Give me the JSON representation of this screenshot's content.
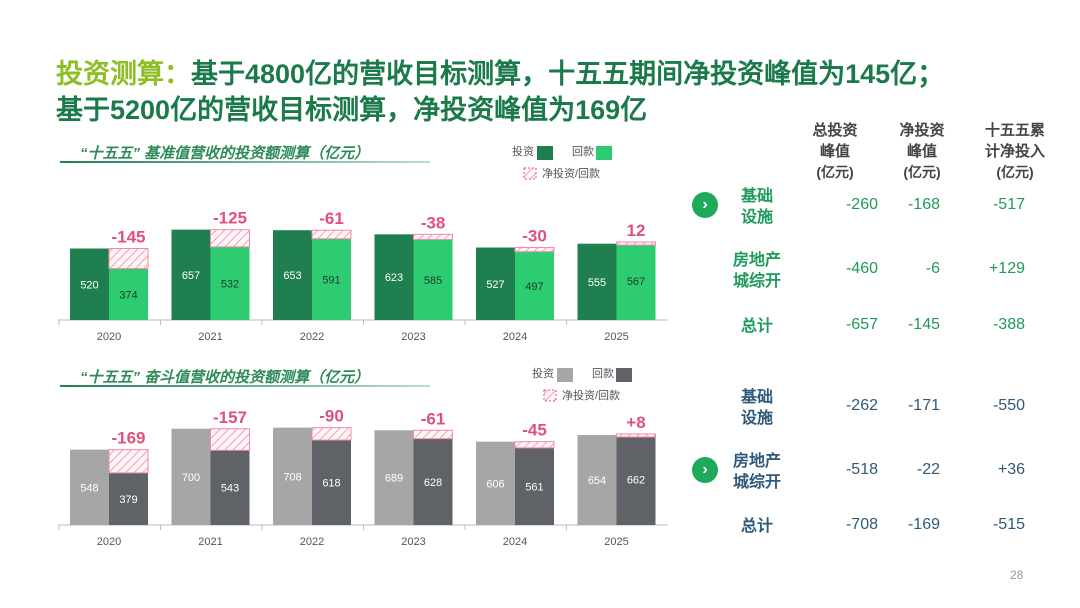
{
  "title": {
    "line1_highlight": "投资测算：",
    "line1_rest": "基于4800亿的营收目标测算，十五五期间净投资峰值为145亿；",
    "line2": "基于5200亿的营收目标测算，净投资峰值为169亿"
  },
  "chart_data": [
    {
      "type": "bar",
      "title": "“十五五” 基准值营收的投资额测算（亿元）",
      "categories": [
        "2020",
        "2021",
        "2022",
        "2023",
        "2024",
        "2025"
      ],
      "series": [
        {
          "name": "投资",
          "values": [
            520,
            657,
            653,
            623,
            527,
            555
          ]
        },
        {
          "name": "回款",
          "values": [
            374,
            532,
            591,
            585,
            497,
            567
          ]
        }
      ],
      "net_label": "净投资/回款",
      "net_values": [
        "-145",
        "-125",
        "-61",
        "-38",
        "-30",
        "12"
      ],
      "colors": {
        "invest": "#1f7f4f",
        "return": "#2ecc71",
        "net": "#e0507a"
      },
      "ylim": [
        0,
        800
      ]
    },
    {
      "type": "bar",
      "title": "“十五五” 奋斗值营收的投资额测算（亿元）",
      "categories": [
        "2020",
        "2021",
        "2022",
        "2023",
        "2024",
        "2025"
      ],
      "series": [
        {
          "name": "投资",
          "values": [
            548,
            700,
            708,
            689,
            606,
            654
          ]
        },
        {
          "name": "回款",
          "values": [
            379,
            543,
            618,
            628,
            561,
            662
          ]
        }
      ],
      "net_label": "净投资/回款",
      "net_values": [
        "-169",
        "-157",
        "-90",
        "-61",
        "-45",
        "+8"
      ],
      "colors": {
        "invest": "#a6a6a6",
        "return": "#5f6368",
        "net": "#e0507a"
      },
      "ylim": [
        0,
        800
      ]
    }
  ],
  "table": {
    "headers": [
      {
        "l1": "总投资",
        "l2": "峰值",
        "unit": "(亿元)"
      },
      {
        "l1": "净投资",
        "l2": "峰值",
        "unit": "(亿元)"
      },
      {
        "l1": "十五五累",
        "l2": "计净投入",
        "unit": "(亿元)"
      }
    ],
    "group1": [
      {
        "l1": "基础",
        "l2": "设施",
        "vals": [
          "-260",
          "-168",
          "-517"
        ]
      },
      {
        "l1": "房地产",
        "l2": "城综开",
        "vals": [
          "-460",
          "-6",
          "+129"
        ]
      },
      {
        "l1": "总计",
        "l2": "",
        "vals": [
          "-657",
          "-145",
          "-388"
        ]
      }
    ],
    "group2": [
      {
        "l1": "基础",
        "l2": "设施",
        "vals": [
          "-262",
          "-171",
          "-550"
        ]
      },
      {
        "l1": "房地产",
        "l2": "城综开",
        "vals": [
          "-518",
          "-22",
          "+36"
        ]
      },
      {
        "l1": "总计",
        "l2": "",
        "vals": [
          "-708",
          "-169",
          "-515"
        ]
      }
    ],
    "arrow_glyph": "›"
  },
  "page_number": "28"
}
